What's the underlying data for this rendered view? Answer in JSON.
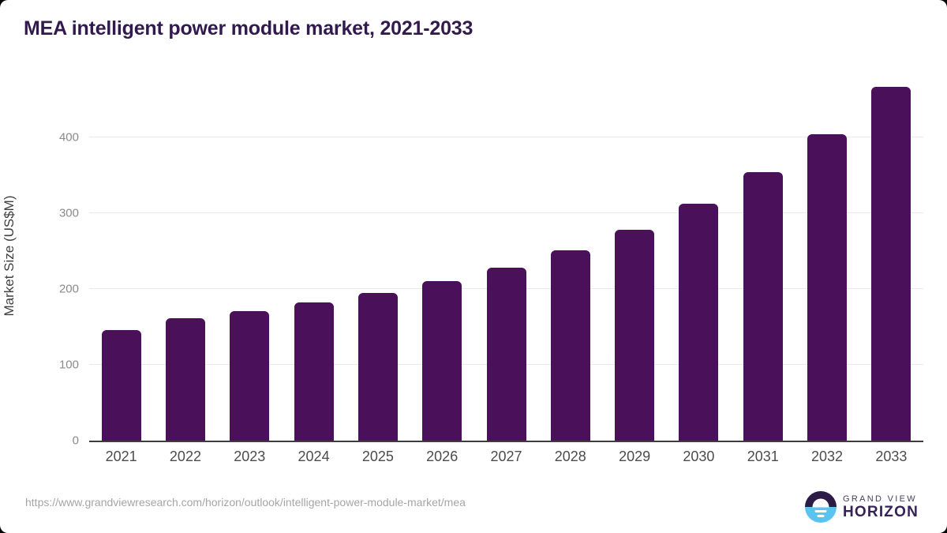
{
  "title": "MEA intelligent power module market, 2021-2033",
  "chart_data": {
    "type": "bar",
    "title": "MEA intelligent power module market, 2021-2033",
    "categories": [
      "2021",
      "2022",
      "2023",
      "2024",
      "2025",
      "2026",
      "2027",
      "2028",
      "2029",
      "2030",
      "2031",
      "2032",
      "2033"
    ],
    "values": [
      146,
      161,
      171,
      182,
      195,
      210,
      228,
      251,
      278,
      312,
      354,
      404,
      466
    ],
    "xlabel": "",
    "ylabel": "Market Size (US$M)",
    "ylim": [
      0,
      482
    ],
    "yticks": [
      0,
      100,
      200,
      300,
      400
    ],
    "grid": true,
    "legend": false,
    "bar_color": "#4a1059"
  },
  "footer": {
    "source_url": "https://www.grandviewresearch.com/horizon/outlook/intelligent-power-module-market/mea",
    "logo": {
      "line1": "GRAND VIEW",
      "line2": "HORIZON"
    }
  },
  "colors": {
    "bar": "#4a1059",
    "title_text": "#321a4e",
    "gridline": "#e9e9e9",
    "axis_line": "#3d3d3d",
    "y_tick_text": "#8a8a8a",
    "x_tick_text": "#4c4c4c",
    "url_text": "#a5a5a5",
    "logo_dark": "#2c1b45",
    "logo_blue": "#5bc3f0"
  }
}
